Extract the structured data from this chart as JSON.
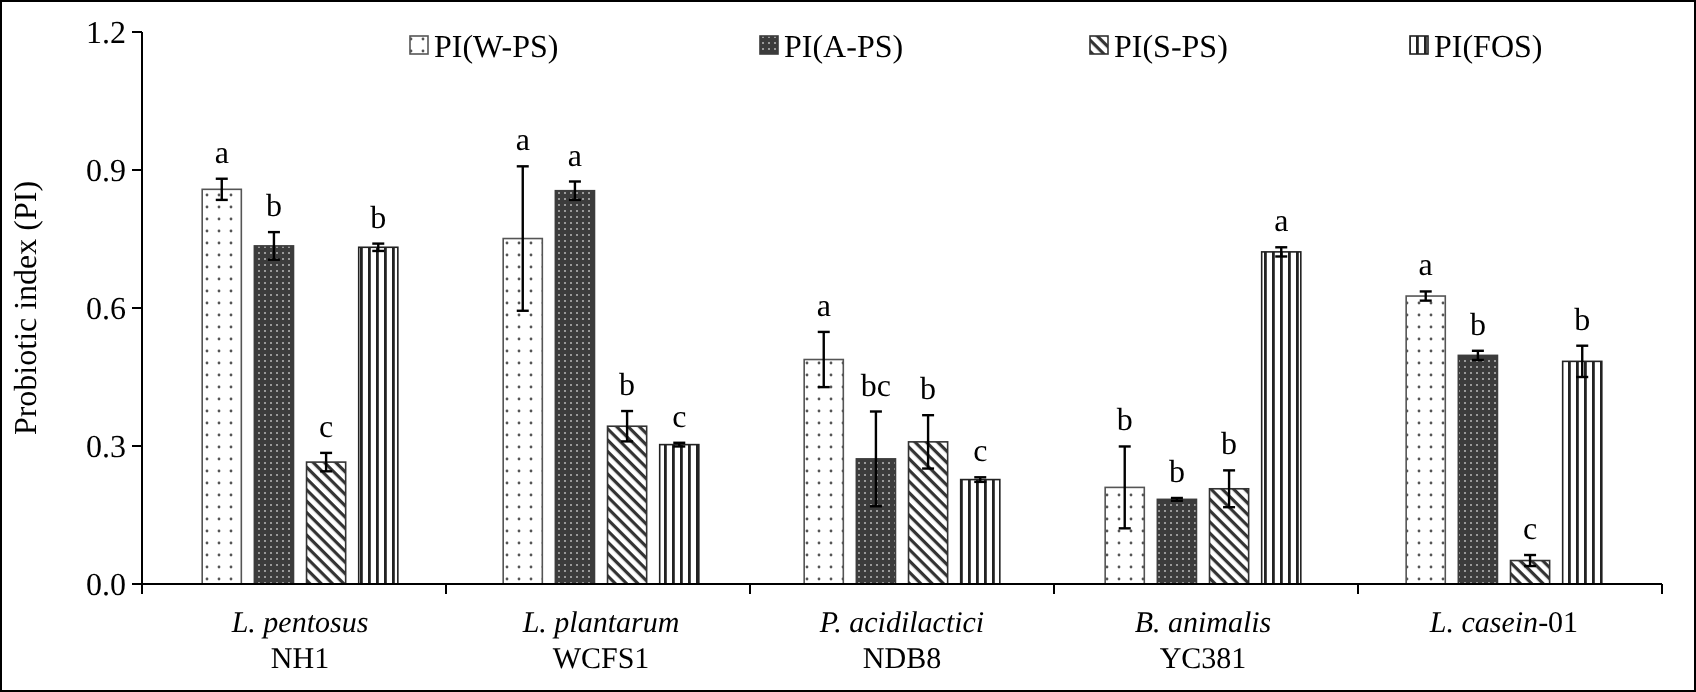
{
  "chart_data": {
    "type": "bar",
    "ylabel": "Probiotic index (PI)",
    "categories": [
      "L. pentosus\nNH1",
      "L. plantarum\nWCFS1",
      "P. acidilactici\nNDB8",
      "B. animalis\nYC381",
      "L. casein-01"
    ],
    "ylim": [
      0,
      1.2
    ],
    "yticks": [
      {
        "value": 0,
        "label": "0.0"
      },
      {
        "value": 0.3,
        "label": "0.3"
      },
      {
        "value": 0.6,
        "label": "0.6"
      },
      {
        "value": 0.9,
        "label": "0.9"
      },
      {
        "value": 1.2,
        "label": "1.2"
      }
    ],
    "grid": false,
    "legend": "top",
    "series": [
      {
        "name": "PI(W-PS)",
        "color": "#555555",
        "values": [
          0.858,
          0.751,
          0.488,
          0.21,
          0.626
        ],
        "errors": [
          0.023,
          0.157,
          0.06,
          0.089,
          0.01
        ],
        "value_labels": [
          "a",
          "a",
          "a",
          "b",
          "a"
        ]
      },
      {
        "name": "PI(A-PS)",
        "color": "#3c3c3c",
        "values": [
          0.735,
          0.855,
          0.272,
          0.184,
          0.497
        ],
        "errors": [
          0.03,
          0.02,
          0.103,
          0.003,
          0.01
        ],
        "value_labels": [
          "b",
          "a",
          "bc",
          "b",
          "b"
        ]
      },
      {
        "name": "PI(S-PS)",
        "color": "#333333",
        "values": [
          0.265,
          0.343,
          0.309,
          0.207,
          0.051
        ],
        "errors": [
          0.02,
          0.033,
          0.058,
          0.04,
          0.012
        ],
        "value_labels": [
          "c",
          "b",
          "b",
          "b",
          "c"
        ]
      },
      {
        "name": "PI(FOS)",
        "color": "#222222",
        "values": [
          0.732,
          0.303,
          0.227,
          0.722,
          0.484
        ],
        "errors": [
          0.008,
          0.004,
          0.005,
          0.01,
          0.034
        ],
        "value_labels": [
          "b",
          "c",
          "c",
          "a",
          "b"
        ]
      }
    ]
  }
}
